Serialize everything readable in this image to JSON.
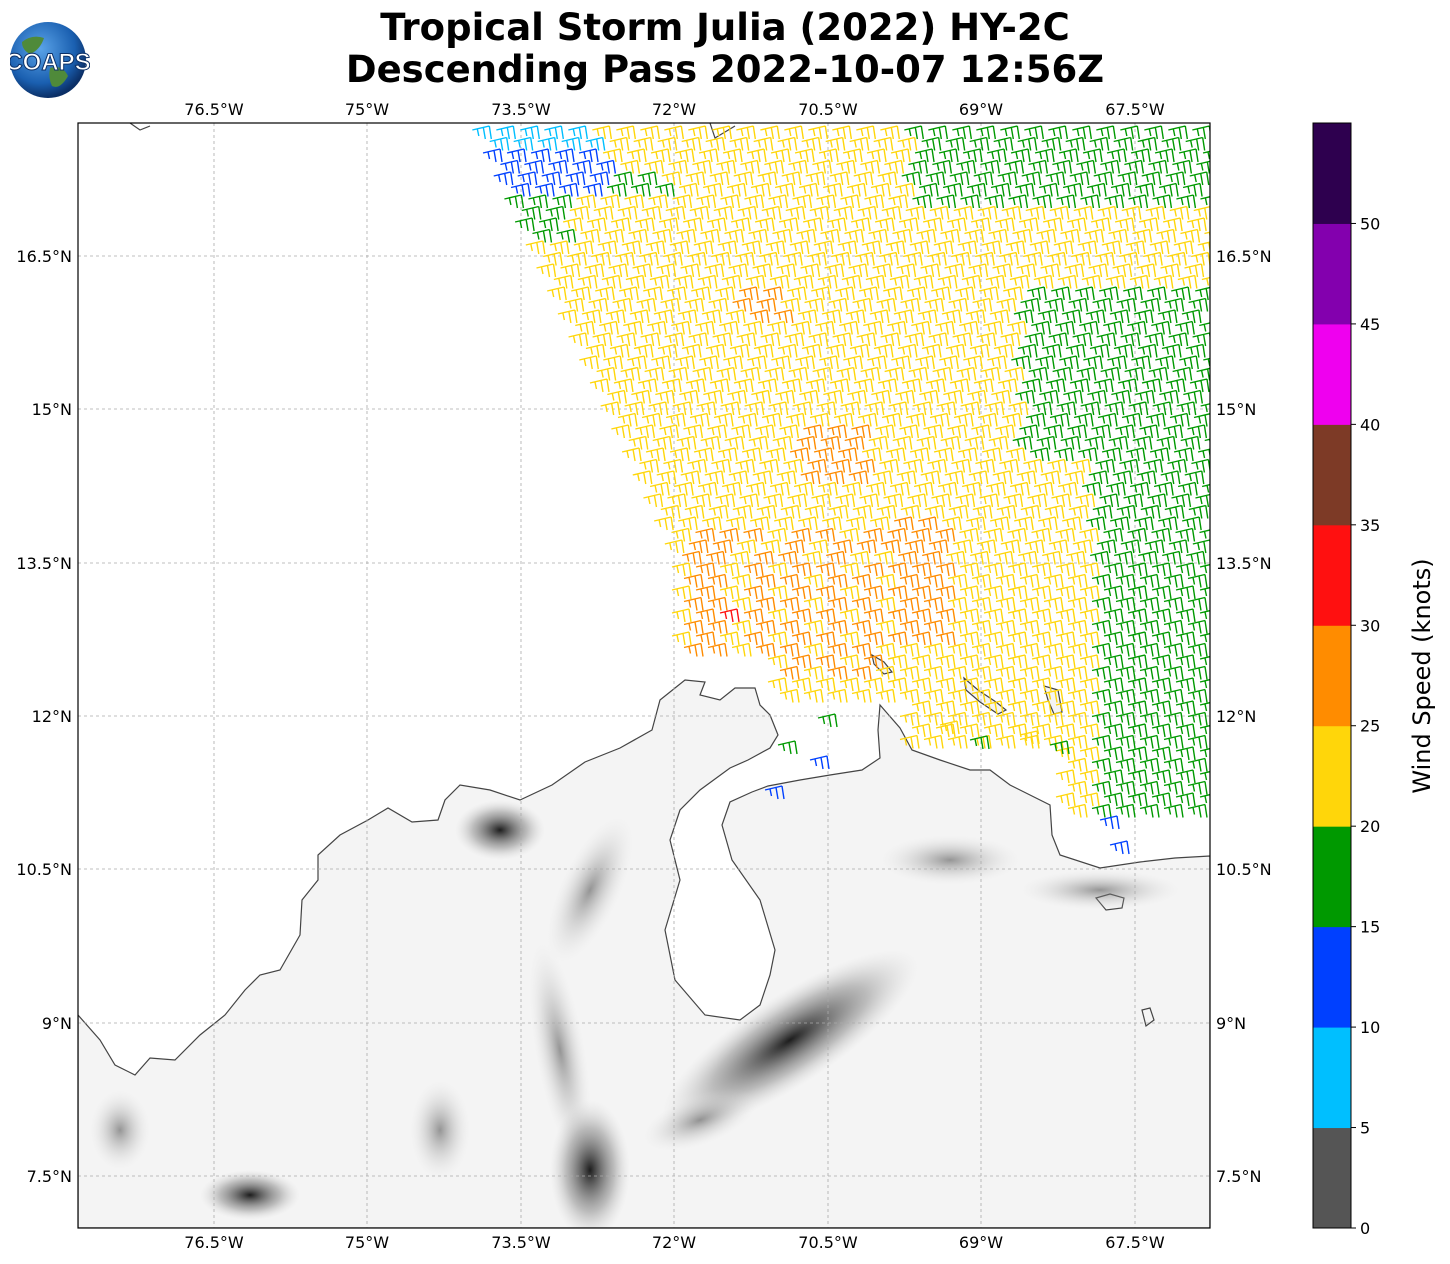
{
  "title_line1": "Tropical Storm Julia (2022) HY-2C",
  "title_line2": "Descending Pass 2022-10-07 12:56Z",
  "logo_text": "COAPS",
  "colorbar": {
    "label": "Wind Speed (knots)",
    "colors": [
      "#555555",
      "#00bfff",
      "#0040ff",
      "#009900",
      "#ffd60a",
      "#ff8c00",
      "#ff1010",
      "#7d3a26",
      "#ef00ef",
      "#8300ae",
      "#2e004f"
    ],
    "ticks": [
      "0",
      "5",
      "10",
      "15",
      "20",
      "25",
      "30",
      "35",
      "40",
      "45",
      "50"
    ]
  },
  "axes": {
    "lon_labels": [
      "76.5°W",
      "75°W",
      "73.5°W",
      "72°W",
      "70.5°W",
      "69°W",
      "67.5°W"
    ],
    "lat_labels": [
      "16.5°N",
      "15°N",
      "13.5°N",
      "12°N",
      "10.5°N",
      "9°N",
      "7.5°N"
    ]
  },
  "map_icon": "wind-barb-icon"
}
